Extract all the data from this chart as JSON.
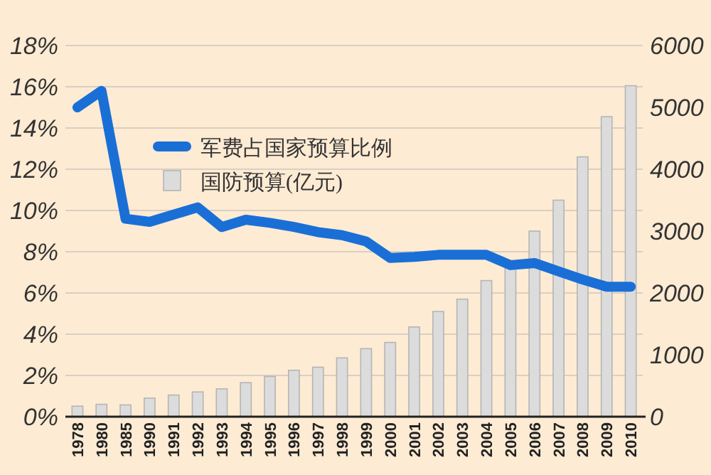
{
  "chart_data": {
    "type": "bar",
    "categories": [
      "1978",
      "1980",
      "1985",
      "1990",
      "1991",
      "1992",
      "1993",
      "1994",
      "1995",
      "1996",
      "1997",
      "1998",
      "1999",
      "2000",
      "2001",
      "2002",
      "2003",
      "2004",
      "2005",
      "2006",
      "2007",
      "2008",
      "2009",
      "2010"
    ],
    "series": [
      {
        "name": "军费占国家预算比例",
        "type": "line",
        "color": "#1a6fd6",
        "values": [
          15.0,
          15.8,
          9.6,
          9.45,
          9.8,
          10.15,
          9.2,
          9.55,
          9.4,
          9.2,
          8.95,
          8.8,
          8.5,
          7.7,
          7.75,
          7.85,
          7.85,
          7.85,
          7.35,
          7.45,
          7.05,
          6.65,
          6.3,
          6.3
        ]
      },
      {
        "name": "国防预算(亿元)",
        "axis": "y2",
        "color": "#dcdcdc",
        "values": [
          170,
          200,
          190,
          300,
          350,
          400,
          450,
          550,
          650,
          750,
          800,
          950,
          1100,
          1200,
          1450,
          1700,
          1900,
          2200,
          2450,
          3000,
          3500,
          4200,
          4850,
          5350
        ]
      }
    ],
    "ylim": [
      0,
      18
    ],
    "yticks": [
      {
        "value": 0,
        "label": "0%"
      },
      {
        "value": 2,
        "label": "2%"
      },
      {
        "value": 4,
        "label": "4%"
      },
      {
        "value": 6,
        "label": "6%"
      },
      {
        "value": 8,
        "label": "8%"
      },
      {
        "value": 10,
        "label": "10%"
      },
      {
        "value": 12,
        "label": "12%"
      },
      {
        "value": 14,
        "label": "14%"
      },
      {
        "value": 16,
        "label": "16%"
      },
      {
        "value": 18,
        "label": "18%"
      }
    ],
    "y2lim": [
      0,
      6000
    ],
    "y2ticks": [
      0,
      1000,
      2000,
      3000,
      4000,
      5000,
      6000
    ],
    "grid": "y",
    "legend": "top left"
  }
}
